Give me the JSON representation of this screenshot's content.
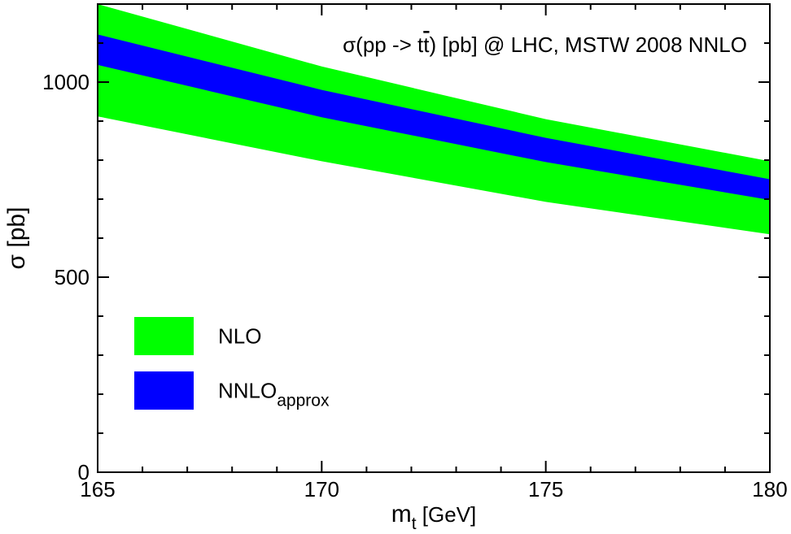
{
  "chart_data": {
    "type": "area",
    "title": "σ(pp -> tt̄) [pb] @ LHC, MSTW 2008 NNLO",
    "title_parts": {
      "prefix": "σ(pp -> t",
      "tbar": "t",
      "suffix": ") [pb] @ LHC, MSTW 2008 NNLO"
    },
    "xlabel": {
      "main": "m",
      "sub": "t",
      "unit": " [GeV]"
    },
    "ylabel": "σ [pb]",
    "xlim": [
      165,
      180
    ],
    "ylim": [
      0,
      1200
    ],
    "x_ticks": [
      165,
      170,
      175,
      180
    ],
    "x_tick_labels": [
      "165",
      "170",
      "175",
      "180"
    ],
    "y_ticks": [
      0,
      500,
      1000
    ],
    "y_tick_labels": [
      "0",
      "500",
      "1000"
    ],
    "x": [
      165,
      170,
      175,
      180
    ],
    "series": [
      {
        "name": "NLO",
        "color": "#00ff00",
        "upper": [
          1200,
          1040,
          905,
          797
        ],
        "lower": [
          912,
          797,
          693,
          610
        ]
      },
      {
        "name": "NNLO_approx",
        "color": "#0000ff",
        "upper": [
          1122,
          980,
          857,
          751
        ],
        "lower": [
          1044,
          910,
          795,
          698
        ]
      }
    ],
    "legend": {
      "placement": "bottom-left",
      "items": [
        {
          "label": "NLO",
          "sub": "",
          "color": "#00ff00"
        },
        {
          "label": "NNLO",
          "sub": "approx",
          "color": "#0000ff"
        }
      ]
    }
  }
}
